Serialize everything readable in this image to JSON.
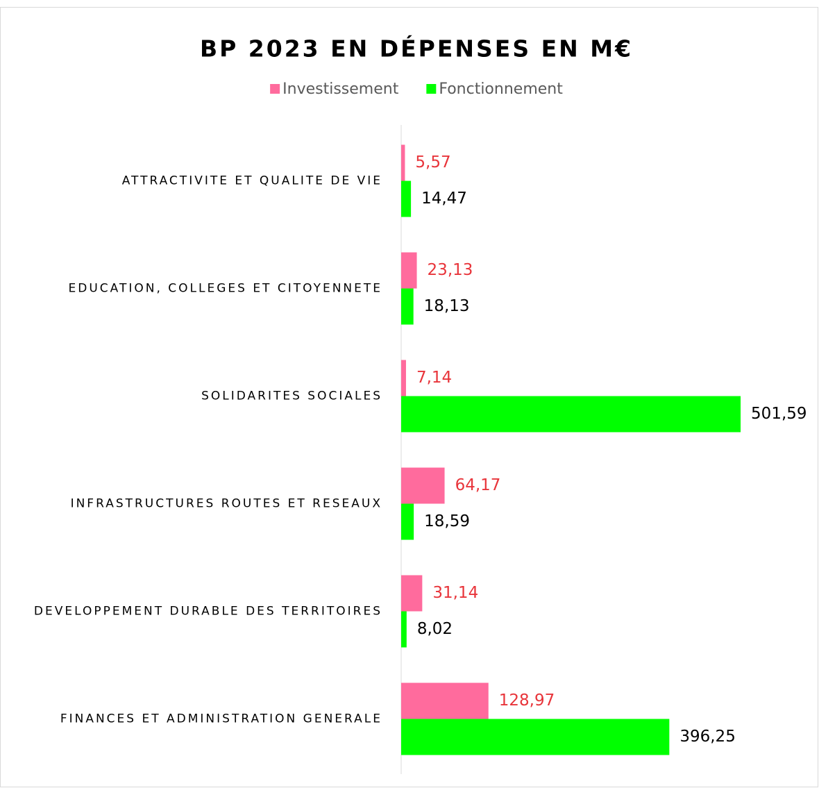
{
  "chart_data": {
    "type": "bar",
    "orientation": "horizontal",
    "title": "BP 2023 EN DÉPENSES EN M€",
    "categories": [
      "ATTRACTIVITE ET QUALITE DE VIE",
      "EDUCATION, COLLEGES ET CITOYENNETE",
      "SOLIDARITES SOCIALES",
      "INFRASTRUCTURES ROUTES ET RESEAUX",
      "DEVELOPPEMENT DURABLE DES TERRITOIRES",
      "FINANCES ET ADMINISTRATION GENERALE"
    ],
    "series": [
      {
        "name": "Investissement",
        "color": "#ff6b9d",
        "label_color": "#e8343a",
        "values": [
          5.57,
          23.13,
          7.14,
          64.17,
          31.14,
          128.97
        ],
        "value_labels": [
          "5,57",
          "23,13",
          "7,14",
          "64,17",
          "31,14",
          "128,97"
        ]
      },
      {
        "name": "Fonctionnement",
        "color": "#00ff00",
        "label_color": "#000000",
        "values": [
          14.47,
          18.13,
          501.59,
          18.59,
          8.02,
          396.25
        ],
        "value_labels": [
          "14,47",
          "18,13",
          "501,59",
          "18,59",
          "8,02",
          "396,25"
        ]
      }
    ],
    "xlim": [
      0,
      600
    ],
    "legend": "top"
  }
}
